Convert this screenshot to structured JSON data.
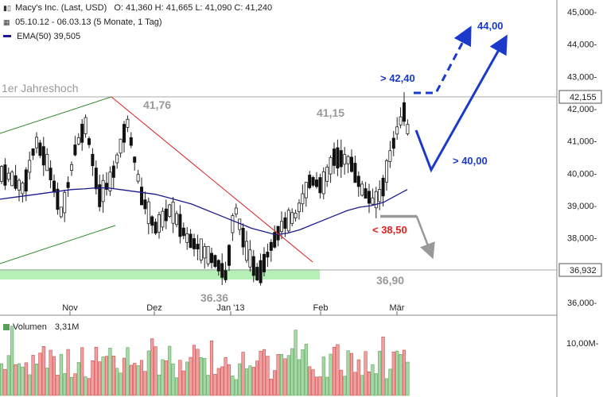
{
  "header": {
    "title": "Macy's Inc. (Last, USD)",
    "ohlc": "O: 41,360  H: 41,665  L: 41,090  C: 41,240",
    "range": "05.10.12 - 06.03.13 (5 Monate, 1 Tag)",
    "ema": "EMA(50)  39,505"
  },
  "volume": {
    "label": "Volumen",
    "value": "3,31M",
    "axis_label": "10,00M-"
  },
  "colors": {
    "up": "#4a9a4a",
    "down": "#cc3333",
    "ema": "#1a1a8c",
    "trend_green": "#2e8b2e",
    "trend_red": "#dd2222",
    "arrow_blue": "#1a3acc",
    "support_fill": "#b6f0b6",
    "vol_up": "#a6d8a6",
    "vol_down": "#f0a0a0"
  },
  "chart_data": {
    "type": "candlestick",
    "x_ticks": [
      "Nov",
      "Dez",
      "Jan '13",
      "Feb",
      "Mär"
    ],
    "y_ticks": [
      "45,000-",
      "44,000-",
      "43,000-",
      "42,000-",
      "41,000-",
      "40,000-",
      "39,000-",
      "38,000-",
      "37,000-",
      "36,000-"
    ],
    "ylim": [
      35.7,
      45.4
    ],
    "levels": [
      {
        "value": 42.155,
        "label": "42,155"
      },
      {
        "value": 36.932,
        "label": "36,932"
      }
    ],
    "annotations": {
      "jahreshoch": "1er Jahreshoch",
      "high1": "41,76",
      "high2": "41,15",
      "low1": "36.36",
      "support": "36,90",
      "target_up": "> 42,40",
      "target_top": "44,00",
      "pullback": "> 40,00",
      "stop": "< 38,50"
    },
    "series": [
      {
        "name": "EMA(50)",
        "values": [
          39.2,
          39.25,
          39.3,
          39.35,
          39.4,
          39.45,
          39.5,
          39.52,
          39.55,
          39.55,
          39.5,
          39.45,
          39.4,
          39.35,
          39.25,
          39.15,
          39.05,
          38.9,
          38.75,
          38.6,
          38.45,
          38.3,
          38.2,
          38.1,
          38.15,
          38.25,
          38.4,
          38.55,
          38.7,
          38.85,
          38.95,
          39.0,
          39.1,
          39.3,
          39.5
        ]
      }
    ]
  }
}
